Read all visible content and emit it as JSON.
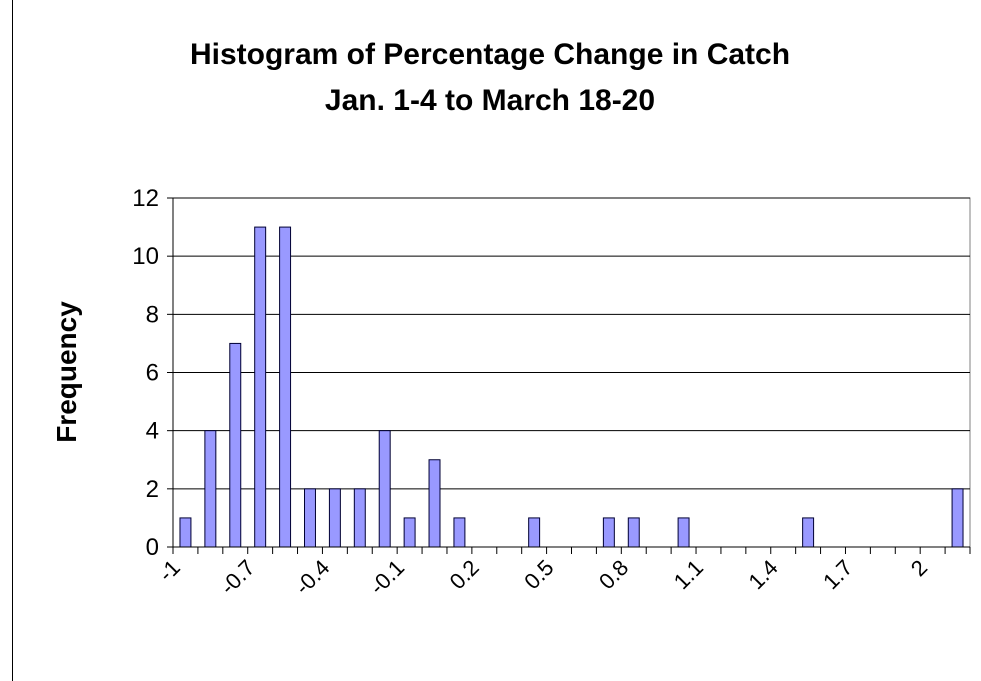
{
  "chart_data": {
    "type": "bar",
    "title": [
      "Histogram of Percentage Change in Catch",
      "Jan. 1-4 to March 18-20"
    ],
    "y_label": "Frequency",
    "categories": [
      "-1",
      null,
      null,
      "-0.7",
      null,
      null,
      "-0.4",
      null,
      null,
      "-0.1",
      null,
      null,
      "0.2",
      null,
      null,
      "0.5",
      null,
      null,
      "0.8",
      null,
      null,
      "1.1",
      null,
      null,
      "1.4",
      null,
      null,
      "1.7",
      null,
      null,
      "2",
      null
    ],
    "values": [
      1,
      4,
      7,
      11,
      11,
      2,
      2,
      2,
      4,
      1,
      3,
      1,
      0,
      0,
      1,
      0,
      0,
      1,
      1,
      0,
      1,
      0,
      0,
      0,
      0,
      1,
      0,
      0,
      0,
      0,
      0,
      2
    ],
    "color": "#9999ff",
    "ylim": [
      0,
      12
    ],
    "yticks": [
      0,
      2,
      4,
      6,
      8,
      10,
      12
    ],
    "grid": true
  }
}
